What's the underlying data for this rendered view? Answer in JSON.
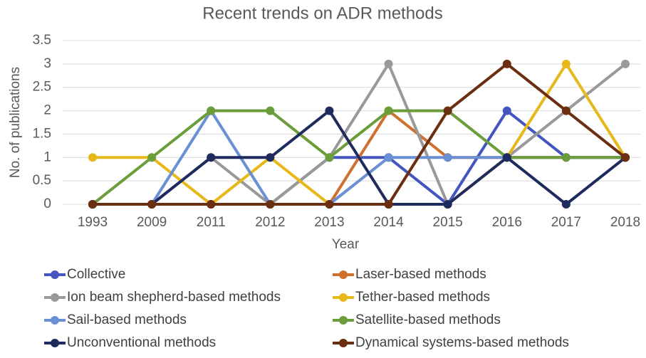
{
  "chart_data": {
    "type": "line",
    "title": "Recent trends on ADR methods",
    "xlabel": "Year",
    "ylabel": "No. of publications",
    "categories": [
      "1993",
      "2009",
      "2011",
      "2012",
      "2013",
      "2014",
      "2015",
      "2016",
      "2017",
      "2018"
    ],
    "ylim": [
      0,
      3.5
    ],
    "yticks": [
      0,
      0.5,
      1,
      1.5,
      2,
      2.5,
      3,
      3.5
    ],
    "grid": true,
    "series": [
      {
        "name": "Collective",
        "color": "#4455c0",
        "values": [
          0,
          0,
          0,
          0,
          1,
          1,
          0,
          2,
          1,
          1
        ]
      },
      {
        "name": "Laser-based methods",
        "color": "#d0702f",
        "values": [
          0,
          0,
          0,
          0,
          0,
          2,
          1,
          1,
          1,
          1
        ]
      },
      {
        "name": "Ion beam shepherd-based methods",
        "color": "#999999",
        "values": [
          0,
          0,
          1,
          0,
          1,
          3,
          0,
          1,
          2,
          3
        ]
      },
      {
        "name": "Tether-based methods",
        "color": "#e6b819",
        "values": [
          1,
          1,
          0,
          1,
          0,
          0,
          0,
          1,
          3,
          1
        ]
      },
      {
        "name": "Sail-based methods",
        "color": "#6a8fd4",
        "values": [
          0,
          0,
          2,
          0,
          0,
          1,
          1,
          1,
          1,
          1
        ]
      },
      {
        "name": "Satellite-based methods",
        "color": "#6b9e3a",
        "values": [
          0,
          1,
          2,
          2,
          1,
          2,
          2,
          1,
          1,
          1
        ]
      },
      {
        "name": "Unconventional methods",
        "color": "#1f2b5e",
        "values": [
          0,
          0,
          1,
          1,
          2,
          0,
          0,
          1,
          0,
          1
        ]
      },
      {
        "name": "Dynamical systems-based methods",
        "color": "#6b2e10",
        "values": [
          0,
          0,
          0,
          0,
          0,
          0,
          2,
          3,
          2,
          1
        ]
      }
    ]
  }
}
